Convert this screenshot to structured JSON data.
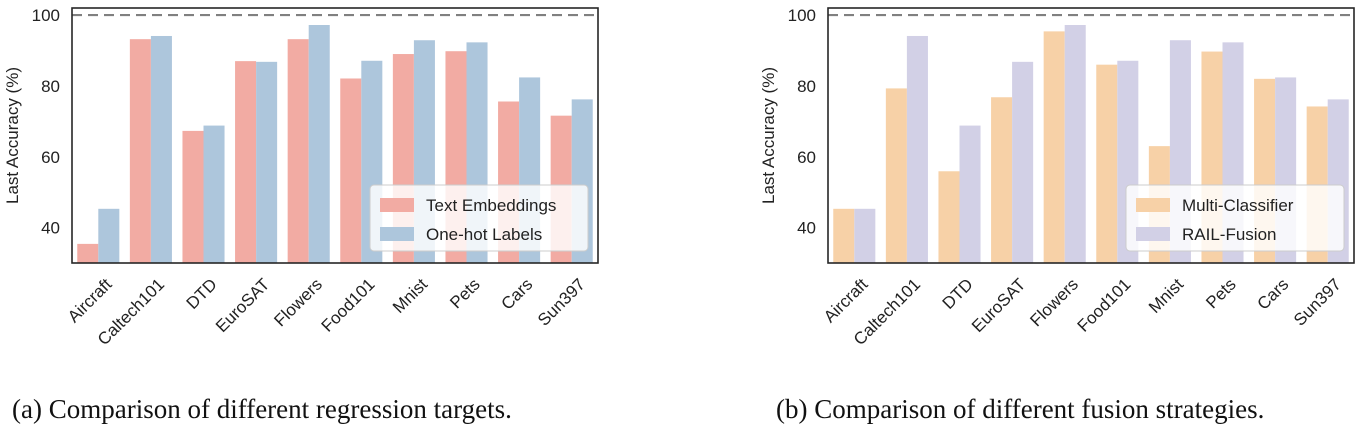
{
  "chart_data": [
    {
      "type": "bar",
      "title": "",
      "xlabel": "",
      "ylabel": "Last Accuracy (%)",
      "ylim": [
        30,
        102
      ],
      "yticks": [
        40,
        60,
        80,
        100
      ],
      "reference_line": 100,
      "categories": [
        "Aircraft",
        "Caltech101",
        "DTD",
        "EuroSAT",
        "Flowers",
        "Food101",
        "Mnist",
        "Pets",
        "Cars",
        "Sun397"
      ],
      "series": [
        {
          "name": "Text Embeddings",
          "color": "#f2aba3",
          "values": [
            35.4,
            93.2,
            67.3,
            87.0,
            93.2,
            82.1,
            89.0,
            89.8,
            75.6,
            71.6
          ]
        },
        {
          "name": "One-hot Labels",
          "color": "#adc6dc",
          "values": [
            45.3,
            94.1,
            68.8,
            86.8,
            97.2,
            87.1,
            92.9,
            92.3,
            82.4,
            76.2
          ]
        }
      ],
      "legend_position": "bottom-right",
      "caption": "(a) Comparison of different regression targets."
    },
    {
      "type": "bar",
      "title": "",
      "xlabel": "",
      "ylabel": "Last Accuracy (%)",
      "ylim": [
        30,
        102
      ],
      "yticks": [
        40,
        60,
        80,
        100
      ],
      "reference_line": 100,
      "categories": [
        "Aircraft",
        "Caltech101",
        "DTD",
        "EuroSAT",
        "Flowers",
        "Food101",
        "Mnist",
        "Pets",
        "Cars",
        "Sun397"
      ],
      "series": [
        {
          "name": "Multi-Classifier",
          "color": "#f7d1a7",
          "values": [
            45.3,
            79.3,
            55.9,
            76.8,
            95.4,
            86.0,
            63.0,
            89.7,
            82.0,
            74.2
          ]
        },
        {
          "name": "RAIL-Fusion",
          "color": "#d2d0e6",
          "values": [
            45.3,
            94.1,
            68.8,
            86.8,
            97.2,
            87.1,
            92.9,
            92.3,
            82.4,
            76.2
          ]
        }
      ],
      "legend_position": "bottom-right",
      "caption": "(b) Comparison of different fusion strategies."
    }
  ]
}
